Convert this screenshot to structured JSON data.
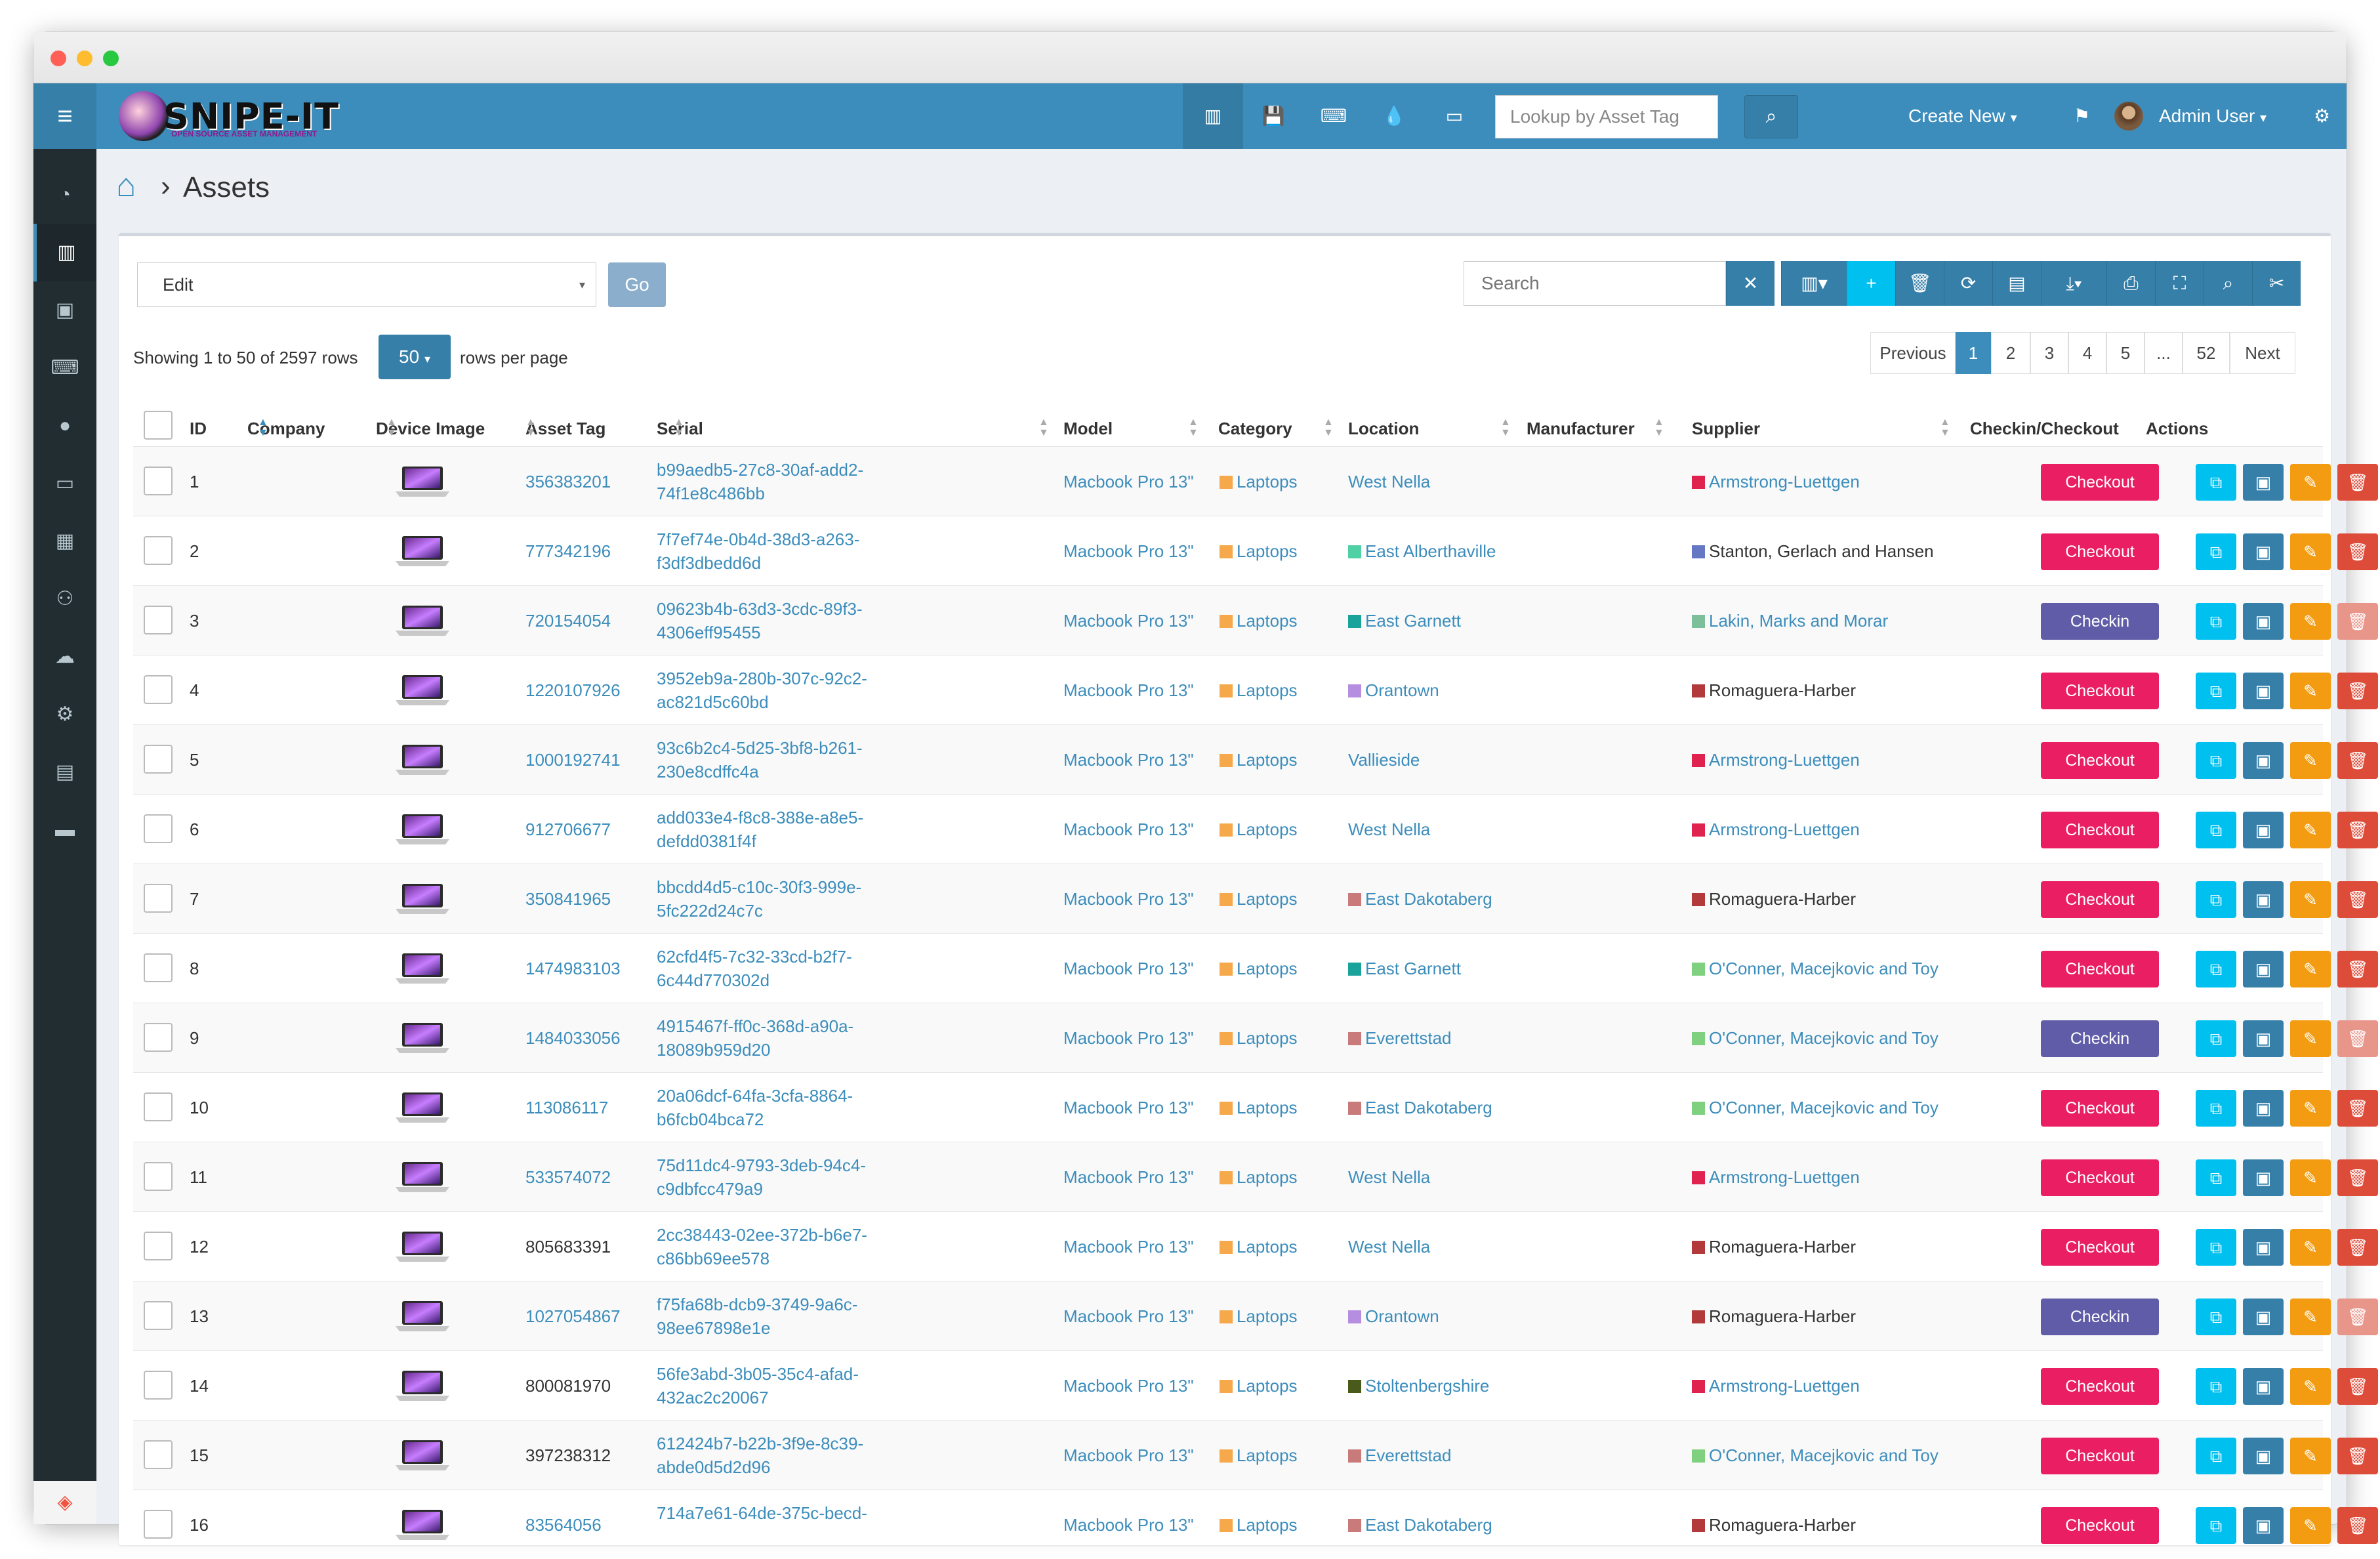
{
  "app": {
    "logo_text": "SNIPE-IT",
    "logo_subtitle": "OPEN SOURCE ASSET MANAGEMENT",
    "lookup_placeholder": "Lookup by Asset Tag",
    "create_new": "Create New",
    "user_name": "Admin User",
    "caret": "▾"
  },
  "breadcrumb": {
    "separator": "›",
    "title": "Assets"
  },
  "toolbar": {
    "bulk_action": "Edit",
    "go": "Go",
    "search_placeholder": "Search",
    "clear": "✕"
  },
  "table_info": {
    "showing": "Showing 1 to 50 of 2597 rows",
    "per_page": "50",
    "per_page_label": "rows per page"
  },
  "pagination": [
    "Previous",
    "1",
    "2",
    "3",
    "4",
    "5",
    "...",
    "52",
    "Next"
  ],
  "pagination_active": "1",
  "columns": [
    "ID",
    "Company",
    "Device Image",
    "Asset Tag",
    "Serial",
    "Model",
    "Category",
    "Location",
    "Manufacturer",
    "Supplier",
    "Checkin/Checkout",
    "Actions"
  ],
  "colors": {
    "primary": "#3c8dbc",
    "checkout": "#e91e63",
    "checkin": "#605ca8",
    "clone": "#00c0ef",
    "audit": "#367fa9",
    "edit": "#f39c12",
    "delete": "#dd4b39",
    "category_laptops": "#f5a94a"
  },
  "icons": {
    "sidebar": [
      "dashboard-icon",
      "barcode-icon",
      "save-icon",
      "keyboard-icon",
      "tint-icon",
      "hdd-icon",
      "components-icon",
      "users-icon",
      "cloud-upload-icon",
      "gear-icon",
      "reports-icon",
      "laptop-icon"
    ],
    "nav": [
      "barcode-icon",
      "save-icon",
      "keyboard-icon",
      "tint-icon",
      "hdd-icon"
    ]
  },
  "rows": [
    {
      "id": "1",
      "tag": "356383201",
      "tag_link": true,
      "serial1": "b99aedb5-27c8-30af-add2-",
      "serial2": "74f1e8c486bb",
      "model": "Macbook Pro 13\"",
      "category": "Laptops",
      "location": "West Nella",
      "loc_color": "",
      "supplier": "Armstrong-Luettgen",
      "sup_color": "#e0234e",
      "sup_link": true,
      "action": "Checkout"
    },
    {
      "id": "2",
      "tag": "777342196",
      "tag_link": true,
      "serial1": "7f7ef74e-0b4d-38d3-a263-",
      "serial2": "f3df3dbedd6d",
      "model": "Macbook Pro 13\"",
      "category": "Laptops",
      "location": "East Alberthaville",
      "loc_color": "#4fd1a5",
      "supplier": "Stanton, Gerlach and Hansen",
      "sup_color": "#6677c4",
      "sup_link": false,
      "action": "Checkout"
    },
    {
      "id": "3",
      "tag": "720154054",
      "tag_link": true,
      "serial1": "09623b4b-63d3-3cdc-89f3-",
      "serial2": "4306eff95455",
      "model": "Macbook Pro 13\"",
      "category": "Laptops",
      "location": "East Garnett",
      "loc_color": "#1aa39a",
      "supplier": "Lakin, Marks and Morar",
      "sup_color": "#7dbf9a",
      "sup_link": true,
      "action": "Checkin"
    },
    {
      "id": "4",
      "tag": "1220107926",
      "tag_link": true,
      "serial1": "3952eb9a-280b-307c-92c2-",
      "serial2": "ac821d5c60bd",
      "model": "Macbook Pro 13\"",
      "category": "Laptops",
      "location": "Orantown",
      "loc_color": "#b58ee0",
      "supplier": "Romaguera-Harber",
      "sup_color": "#b33a3a",
      "sup_link": false,
      "action": "Checkout"
    },
    {
      "id": "5",
      "tag": "1000192741",
      "tag_link": true,
      "serial1": "93c6b2c4-5d25-3bf8-b261-",
      "serial2": "230e8cdffc4a",
      "model": "Macbook Pro 13\"",
      "category": "Laptops",
      "location": "Vallieside",
      "loc_color": "",
      "supplier": "Armstrong-Luettgen",
      "sup_color": "#e0234e",
      "sup_link": true,
      "action": "Checkout"
    },
    {
      "id": "6",
      "tag": "912706677",
      "tag_link": true,
      "serial1": "add033e4-f8c8-388e-a8e5-",
      "serial2": "defdd0381f4f",
      "model": "Macbook Pro 13\"",
      "category": "Laptops",
      "location": "West Nella",
      "loc_color": "",
      "supplier": "Armstrong-Luettgen",
      "sup_color": "#e0234e",
      "sup_link": true,
      "action": "Checkout"
    },
    {
      "id": "7",
      "tag": "350841965",
      "tag_link": true,
      "serial1": "bbcdd4d5-c10c-30f3-999e-",
      "serial2": "5fc222d24c7c",
      "model": "Macbook Pro 13\"",
      "category": "Laptops",
      "location": "East Dakotaberg",
      "loc_color": "#c97a7a",
      "supplier": "Romaguera-Harber",
      "sup_color": "#b33a3a",
      "sup_link": false,
      "action": "Checkout"
    },
    {
      "id": "8",
      "tag": "1474983103",
      "tag_link": true,
      "serial1": "62cfd4f5-7c32-33cd-b2f7-",
      "serial2": "6c44d770302d",
      "model": "Macbook Pro 13\"",
      "category": "Laptops",
      "location": "East Garnett",
      "loc_color": "#1aa39a",
      "supplier": "O'Conner, Macejkovic and Toy",
      "sup_color": "#7fd17f",
      "sup_link": true,
      "action": "Checkout"
    },
    {
      "id": "9",
      "tag": "1484033056",
      "tag_link": true,
      "serial1": "4915467f-ff0c-368d-a90a-",
      "serial2": "18089b959d20",
      "model": "Macbook Pro 13\"",
      "category": "Laptops",
      "location": "Everettstad",
      "loc_color": "#c97a7a",
      "supplier": "O'Conner, Macejkovic and Toy",
      "sup_color": "#7fd17f",
      "sup_link": true,
      "action": "Checkin"
    },
    {
      "id": "10",
      "tag": "113086117",
      "tag_link": true,
      "serial1": "20a06dcf-64fa-3cfa-8864-",
      "serial2": "b6fcb04bca72",
      "model": "Macbook Pro 13\"",
      "category": "Laptops",
      "location": "East Dakotaberg",
      "loc_color": "#c97a7a",
      "supplier": "O'Conner, Macejkovic and Toy",
      "sup_color": "#7fd17f",
      "sup_link": true,
      "action": "Checkout"
    },
    {
      "id": "11",
      "tag": "533574072",
      "tag_link": true,
      "serial1": "75d11dc4-9793-3deb-94c4-",
      "serial2": "c9dbfcc479a9",
      "model": "Macbook Pro 13\"",
      "category": "Laptops",
      "location": "West Nella",
      "loc_color": "",
      "supplier": "Armstrong-Luettgen",
      "sup_color": "#e0234e",
      "sup_link": true,
      "action": "Checkout"
    },
    {
      "id": "12",
      "tag": "805683391",
      "tag_link": false,
      "serial1": "2cc38443-02ee-372b-b6e7-",
      "serial2": "c86bb69ee578",
      "model": "Macbook Pro 13\"",
      "category": "Laptops",
      "location": "West Nella",
      "loc_color": "",
      "supplier": "Romaguera-Harber",
      "sup_color": "#b33a3a",
      "sup_link": false,
      "action": "Checkout"
    },
    {
      "id": "13",
      "tag": "1027054867",
      "tag_link": true,
      "serial1": "f75fa68b-dcb9-3749-9a6c-",
      "serial2": "98ee67898e1e",
      "model": "Macbook Pro 13\"",
      "category": "Laptops",
      "location": "Orantown",
      "loc_color": "#b58ee0",
      "supplier": "Romaguera-Harber",
      "sup_color": "#b33a3a",
      "sup_link": false,
      "action": "Checkin"
    },
    {
      "id": "14",
      "tag": "800081970",
      "tag_link": false,
      "serial1": "56fe3abd-3b05-35c4-afad-",
      "serial2": "432ac2c20067",
      "model": "Macbook Pro 13\"",
      "category": "Laptops",
      "location": "Stoltenbergshire",
      "loc_color": "#4a5a1a",
      "supplier": "Armstrong-Luettgen",
      "sup_color": "#e0234e",
      "sup_link": true,
      "action": "Checkout"
    },
    {
      "id": "15",
      "tag": "397238312",
      "tag_link": false,
      "serial1": "612424b7-b22b-3f9e-8c39-",
      "serial2": "abde0d5d2d96",
      "model": "Macbook Pro 13\"",
      "category": "Laptops",
      "location": "Everettstad",
      "loc_color": "#c97a7a",
      "supplier": "O'Conner, Macejkovic and Toy",
      "sup_color": "#7fd17f",
      "sup_link": true,
      "action": "Checkout"
    },
    {
      "id": "16",
      "tag": "83564056",
      "tag_link": true,
      "serial1": "714a7e61-64de-375c-becd-",
      "serial2": "",
      "model": "Macbook Pro 13\"",
      "category": "Laptops",
      "location": "East Dakotaberg",
      "loc_color": "#c97a7a",
      "supplier": "Romaguera-Harber",
      "sup_color": "#b33a3a",
      "sup_link": false,
      "action": "Checkout"
    }
  ]
}
